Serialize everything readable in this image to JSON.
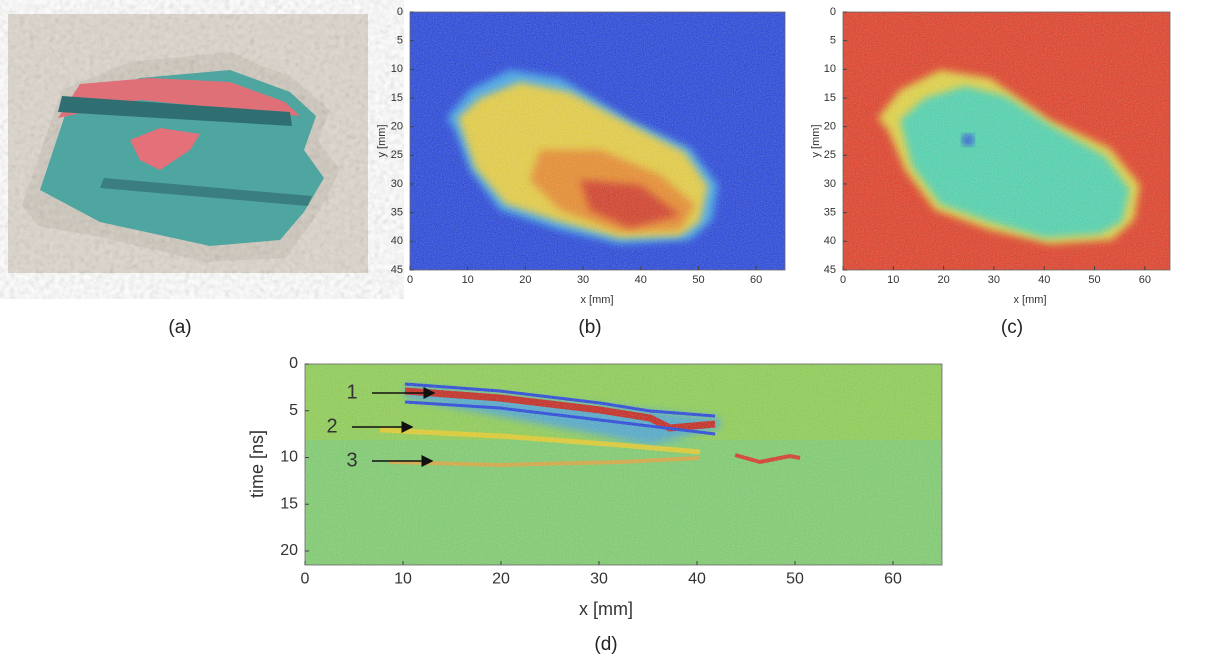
{
  "panels": [
    {
      "label": "(a)"
    },
    {
      "label": "(b)",
      "xlabel": "x [mm]",
      "ylabel": "y [mm]",
      "xlim": [
        0,
        65
      ],
      "ylim": [
        0,
        45
      ],
      "xticks": [
        0,
        10,
        20,
        30,
        40,
        50,
        60
      ],
      "yticks": [
        0,
        5,
        10,
        15,
        20,
        25,
        30,
        35,
        40,
        45
      ]
    },
    {
      "label": "(c)",
      "xlabel": "x [mm]",
      "ylabel": "y [mm]",
      "xlim": [
        0,
        65
      ],
      "ylim": [
        0,
        45
      ],
      "xticks": [
        0,
        10,
        20,
        30,
        40,
        50,
        60
      ],
      "yticks": [
        0,
        5,
        10,
        15,
        20,
        25,
        30,
        35,
        40,
        45
      ]
    },
    {
      "label": "(d)",
      "xlabel": "x [mm]",
      "ylabel": "time [ns]",
      "xlim": [
        0,
        65
      ],
      "ylim": [
        0,
        21.5
      ],
      "xticks": [
        0,
        10,
        20,
        30,
        40,
        50,
        60
      ],
      "yticks": [
        0,
        5,
        10,
        15,
        20
      ],
      "annotations": [
        "1",
        "2",
        "3"
      ]
    }
  ]
}
